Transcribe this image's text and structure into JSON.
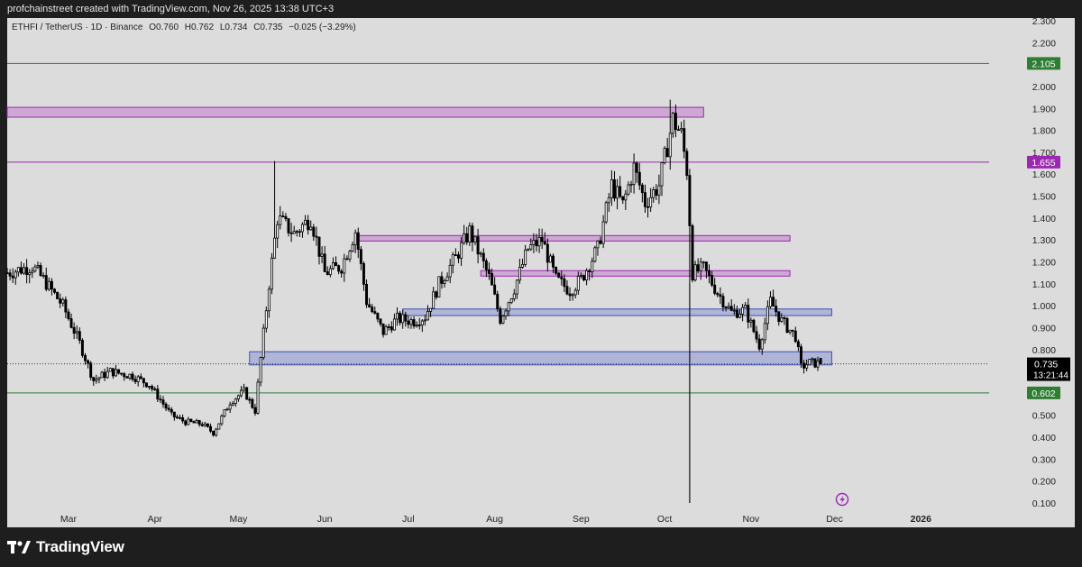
{
  "header": {
    "created_by": "profchainstreet created with TradingView.com, Nov 26, 2025 13:38 UTC+3"
  },
  "legend": {
    "symbol": "ETHFI / TetherUS · 1D · Binance",
    "open": "O0.760",
    "high": "H0.762",
    "low": "L0.734",
    "close": "C0.735",
    "change": "−0.025 (−3.29%)"
  },
  "brand": {
    "name": "TradingView",
    "icon": "tradingview-logo-icon"
  },
  "lightning_icon": "lightning-icon",
  "chart_data": {
    "type": "candlestick",
    "title": "",
    "symbol": "ETHFI/USDT",
    "timeframe": "1D",
    "exchange": "Binance",
    "y_range": [
      0.1,
      2.3
    ],
    "y_ticks": [
      "2.300",
      "2.200",
      "2.100",
      "2.000",
      "1.900",
      "1.800",
      "1.700",
      "1.600",
      "1.500",
      "1.400",
      "1.300",
      "1.200",
      "1.100",
      "1.000",
      "0.900",
      "0.800",
      "0.700",
      "0.600",
      "0.500",
      "0.400",
      "0.300",
      "0.200",
      "0.100"
    ],
    "x_ticks": [
      {
        "label": "Mar",
        "date": "2025-03-01"
      },
      {
        "label": "Apr",
        "date": "2025-04-01"
      },
      {
        "label": "May",
        "date": "2025-05-01"
      },
      {
        "label": "Jun",
        "date": "2025-06-01"
      },
      {
        "label": "Jul",
        "date": "2025-07-01"
      },
      {
        "label": "Aug",
        "date": "2025-08-01"
      },
      {
        "label": "Sep",
        "date": "2025-09-01"
      },
      {
        "label": "Oct",
        "date": "2025-10-01"
      },
      {
        "label": "Nov",
        "date": "2025-11-01"
      },
      {
        "label": "Dec",
        "date": "2025-12-01"
      },
      {
        "label": "2026",
        "date": "2026-01-01"
      }
    ],
    "x_range": [
      "2025-02-07",
      "2026-01-20"
    ],
    "price_anchors": [
      [
        "2025-02-07",
        1.15
      ],
      [
        "2025-02-16",
        1.18
      ],
      [
        "2025-02-20",
        1.12
      ],
      [
        "2025-02-27",
        1.0
      ],
      [
        "2025-03-05",
        0.83
      ],
      [
        "2025-03-10",
        0.66
      ],
      [
        "2025-03-16",
        0.7
      ],
      [
        "2025-03-24",
        0.68
      ],
      [
        "2025-03-30",
        0.64
      ],
      [
        "2025-04-07",
        0.5
      ],
      [
        "2025-04-12",
        0.47
      ],
      [
        "2025-04-18",
        0.46
      ],
      [
        "2025-04-22",
        0.42
      ],
      [
        "2025-04-28",
        0.56
      ],
      [
        "2025-05-03",
        0.61
      ],
      [
        "2025-05-07",
        0.52
      ],
      [
        "2025-05-09",
        0.76
      ],
      [
        "2025-05-12",
        1.1
      ],
      [
        "2025-05-15",
        1.4
      ],
      [
        "2025-05-21",
        1.33
      ],
      [
        "2025-05-27",
        1.4
      ],
      [
        "2025-06-01",
        1.15
      ],
      [
        "2025-06-07",
        1.18
      ],
      [
        "2025-06-12",
        1.34
      ],
      [
        "2025-06-16",
        1.02
      ],
      [
        "2025-06-22",
        0.88
      ],
      [
        "2025-06-27",
        0.94
      ],
      [
        "2025-07-03",
        0.93
      ],
      [
        "2025-07-07",
        0.95
      ],
      [
        "2025-07-12",
        1.1
      ],
      [
        "2025-07-18",
        1.22
      ],
      [
        "2025-07-23",
        1.34
      ],
      [
        "2025-07-30",
        1.13
      ],
      [
        "2025-08-03",
        0.94
      ],
      [
        "2025-08-08",
        1.08
      ],
      [
        "2025-08-13",
        1.26
      ],
      [
        "2025-08-18",
        1.3
      ],
      [
        "2025-08-23",
        1.12
      ],
      [
        "2025-08-28",
        1.07
      ],
      [
        "2025-09-01",
        1.12
      ],
      [
        "2025-09-07",
        1.26
      ],
      [
        "2025-09-12",
        1.55
      ],
      [
        "2025-09-16",
        1.46
      ],
      [
        "2025-09-20",
        1.63
      ],
      [
        "2025-09-24",
        1.47
      ],
      [
        "2025-09-29",
        1.55
      ],
      [
        "2025-10-04",
        1.85
      ],
      [
        "2025-10-07",
        1.78
      ],
      [
        "2025-10-09",
        1.62
      ],
      [
        "2025-10-11",
        1.15
      ],
      [
        "2025-10-15",
        1.17
      ],
      [
        "2025-10-20",
        1.06
      ],
      [
        "2025-10-25",
        0.97
      ],
      [
        "2025-10-30",
        0.98
      ],
      [
        "2025-11-04",
        0.82
      ],
      [
        "2025-11-08",
        1.02
      ],
      [
        "2025-11-12",
        0.93
      ],
      [
        "2025-11-17",
        0.86
      ],
      [
        "2025-11-19",
        0.72
      ],
      [
        "2025-11-22",
        0.74
      ],
      [
        "2025-11-26",
        0.735
      ]
    ],
    "notable_wicks": [
      {
        "date": "2025-05-14",
        "high": 1.66
      },
      {
        "date": "2025-10-03",
        "high": 1.94
      },
      {
        "date": "2025-10-10",
        "low": 0.1
      }
    ],
    "horizontal_lines": [
      {
        "price": 2.105,
        "color": "#2e7d32",
        "label": "2.105"
      },
      {
        "price": 1.655,
        "color": "#9c27b0",
        "label": "1.655"
      },
      {
        "price": 0.602,
        "color": "#2e7d32",
        "label": "0.602"
      }
    ],
    "zones": [
      {
        "start": "2025-02-07",
        "end": "2025-10-15",
        "top": 1.905,
        "bottom": 1.86,
        "color": "purple"
      },
      {
        "start": "2025-06-13",
        "end": "2025-11-15",
        "top": 1.32,
        "bottom": 1.295,
        "color": "purple"
      },
      {
        "start": "2025-07-27",
        "end": "2025-11-15",
        "top": 1.16,
        "bottom": 1.135,
        "color": "purple"
      },
      {
        "start": "2025-06-29",
        "end": "2025-11-30",
        "top": 0.985,
        "bottom": 0.955,
        "color": "blue"
      },
      {
        "start": "2025-05-05",
        "end": "2025-11-30",
        "top": 0.79,
        "bottom": 0.73,
        "color": "blue"
      }
    ],
    "vertical_line": {
      "date": "2025-10-10"
    },
    "last_price": {
      "price": 0.735,
      "label": "0.735",
      "countdown": "13:21:44"
    },
    "colors": {
      "bg": "#dcdcdc",
      "candle_up": "#ffffff",
      "candle_down": "#000000",
      "green": "#2e7d32",
      "purple": "#9c27b0",
      "blue": "#3f51b5"
    }
  }
}
